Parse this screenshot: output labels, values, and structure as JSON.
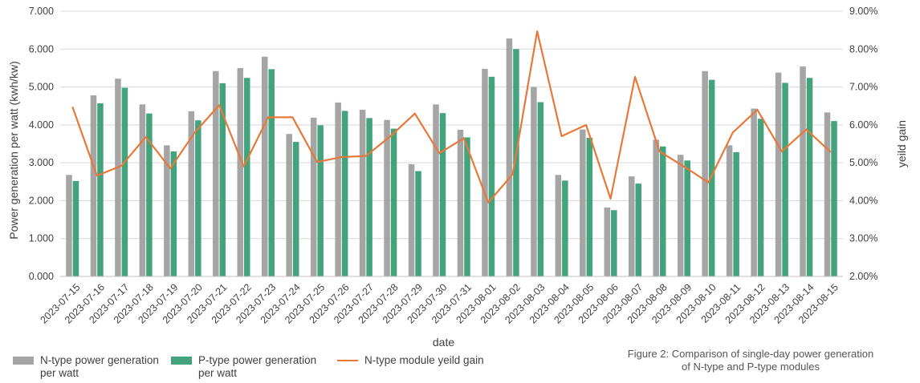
{
  "chart_data": {
    "type": "bar+line",
    "title": "",
    "xlabel": "date",
    "ylabel": "Power generation per watt  (kwh/kw)",
    "y2label": "yeild gain",
    "ylim": [
      0,
      7
    ],
    "y2lim": [
      2,
      9
    ],
    "yticks": [
      "0.000",
      "1.000",
      "2.000",
      "3.000",
      "4.000",
      "5.000",
      "6.000",
      "7.000"
    ],
    "y2ticks": [
      "2.00%",
      "3.00%",
      "4.00%",
      "5.00%",
      "6.00%",
      "7.00%",
      "8.00%",
      "9.00%"
    ],
    "grid": true,
    "legend_position": "bottom-left",
    "categories": [
      "2023-07-15",
      "2023-07-16",
      "2023-07-17",
      "2023-07-18",
      "2023-07-19",
      "2023-07-20",
      "2023-07-21",
      "2023-07-22",
      "2023-07-23",
      "2023-07-24",
      "2023-07-25",
      "2023-07-26",
      "2023-07-27",
      "2023-07-28",
      "2023-07-29",
      "2023-07-30",
      "2023-07-31",
      "2023-08-01",
      "2023-08-02",
      "2023-08-03",
      "2023-08-04",
      "2023-08-05",
      "2023-08-06",
      "2023-08-07",
      "2023-08-08",
      "2023-08-09",
      "2023-08-10",
      "2023-08-11",
      "2023-08-12",
      "2023-08-13",
      "2023-08-14",
      "2023-08-15"
    ],
    "series": [
      {
        "name": "N-type power generation per watt",
        "type": "bar",
        "axis": "left",
        "color": "#a5a5a5",
        "values": [
          2.68,
          4.78,
          5.22,
          4.54,
          3.46,
          4.36,
          5.42,
          5.5,
          5.8,
          3.76,
          4.19,
          4.59,
          4.4,
          4.13,
          2.96,
          4.54,
          3.87,
          5.48,
          6.28,
          5.0,
          2.68,
          3.88,
          1.82,
          2.64,
          3.61,
          3.21,
          5.42,
          3.46,
          4.43,
          5.38,
          5.54,
          4.33
        ]
      },
      {
        "name": "P-type power generation per watt",
        "type": "bar",
        "axis": "left",
        "color": "#43a37c",
        "values": [
          2.52,
          4.57,
          4.98,
          4.3,
          3.3,
          4.12,
          5.1,
          5.24,
          5.47,
          3.55,
          3.99,
          4.37,
          4.18,
          3.9,
          2.78,
          4.31,
          3.67,
          5.27,
          6.0,
          4.6,
          2.53,
          3.66,
          1.75,
          2.45,
          3.43,
          3.06,
          5.19,
          3.28,
          4.16,
          5.11,
          5.24,
          4.1
        ]
      },
      {
        "name": "N-type module yeild gain",
        "type": "line",
        "axis": "right",
        "color": "#e8783a",
        "values": [
          6.48,
          4.66,
          4.92,
          5.68,
          4.85,
          5.8,
          6.52,
          4.9,
          6.2,
          6.2,
          5.02,
          5.15,
          5.18,
          5.7,
          6.3,
          5.25,
          5.65,
          3.95,
          4.7,
          8.47,
          5.7,
          6.0,
          4.05,
          7.27,
          5.3,
          4.9,
          4.48,
          5.8,
          6.4,
          5.3,
          5.88,
          5.28
        ]
      }
    ],
    "legend": {
      "n_bar": "N-type power generation\nper watt",
      "n_bar_l1": "N-type power generation",
      "n_bar_l2": "per watt",
      "p_bar_l1": "P-type power generation",
      "p_bar_l2": "per watt",
      "line": "N-type module yeild gain"
    },
    "caption_l1": "Figure 2: Comparison of single-day power generation",
    "caption_l2": "of N-type and P-type modules"
  }
}
